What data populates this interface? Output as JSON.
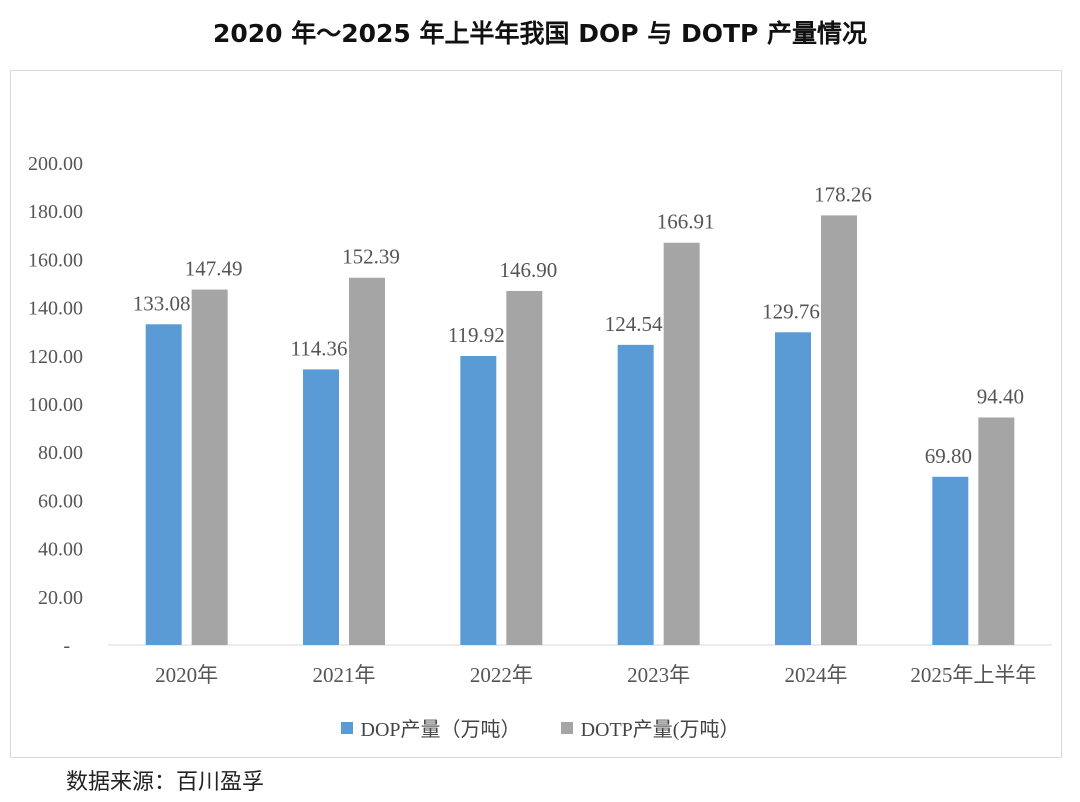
{
  "title": "2020 年～2025 年上半年我国 DOP 与 DOTP 产量情况",
  "source": "数据来源：百川盈孚",
  "colors": {
    "dop": "#5b9bd5",
    "dotp": "#a5a5a5",
    "grid": "#d9d9d9"
  },
  "chart_data": {
    "type": "bar",
    "title": "2020 年～2025 年上半年我国 DOP 与 DOTP 产量情况",
    "categories": [
      "2020年",
      "2021年",
      "2022年",
      "2023年",
      "2024年",
      "2025年上半年"
    ],
    "series": [
      {
        "name": "DOP产量（万吨）",
        "key": "dop",
        "values": [
          133.08,
          114.36,
          119.92,
          124.54,
          129.76,
          69.8
        ]
      },
      {
        "name": "DOTP产量(万吨）",
        "key": "dotp",
        "values": [
          147.49,
          152.39,
          146.9,
          166.91,
          178.26,
          94.4
        ]
      }
    ],
    "ylim": [
      0,
      200
    ],
    "yticks": [
      "-",
      "20.00",
      "40.00",
      "60.00",
      "80.00",
      "100.00",
      "120.00",
      "140.00",
      "160.00",
      "180.00",
      "200.00"
    ],
    "data_labels": {
      "dop": [
        "133.08",
        "114.36",
        "119.92",
        "124.54",
        "129.76",
        "69.80"
      ],
      "dotp": [
        "147.49",
        "152.39",
        "146.90",
        "166.91",
        "178.26",
        "94.40"
      ]
    },
    "legend": "bottom",
    "grid": false,
    "xlabel": "",
    "ylabel": ""
  }
}
